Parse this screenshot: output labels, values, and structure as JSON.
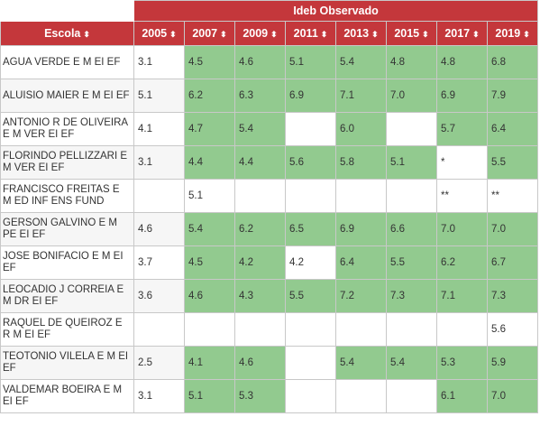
{
  "header": {
    "group_title": "Ideb Observado",
    "school_col": "Escola",
    "sort_icon": "⬍",
    "years": [
      "2005",
      "2007",
      "2009",
      "2011",
      "2013",
      "2015",
      "2017",
      "2019"
    ]
  },
  "rows": [
    {
      "school": "AGUA VERDE E M EI EF",
      "values": [
        "3.1",
        "4.5",
        "4.6",
        "5.1",
        "5.4",
        "4.8",
        "4.8",
        "6.8"
      ]
    },
    {
      "school": "ALUISIO MAIER E M EI EF",
      "values": [
        "5.1",
        "6.2",
        "6.3",
        "6.9",
        "7.1",
        "7.0",
        "6.9",
        "7.9"
      ]
    },
    {
      "school": "ANTONIO R DE OLIVEIRA E M VER EI EF",
      "values": [
        "4.1",
        "4.7",
        "5.4",
        "",
        "6.0",
        "",
        "5.7",
        "6.4"
      ]
    },
    {
      "school": "FLORINDO PELLIZZARI E M VER EI EF",
      "values": [
        "3.1",
        "4.4",
        "4.4",
        "5.6",
        "5.8",
        "5.1",
        "*",
        "5.5"
      ]
    },
    {
      "school": "FRANCISCO FREITAS E M ED INF ENS FUND",
      "values": [
        "",
        "5.1",
        "",
        "",
        "",
        "",
        "**",
        "**"
      ]
    },
    {
      "school": "GERSON GALVINO E M PE EI EF",
      "values": [
        "4.6",
        "5.4",
        "6.2",
        "6.5",
        "6.9",
        "6.6",
        "7.0",
        "7.0"
      ]
    },
    {
      "school": "JOSE BONIFACIO E M EI EF",
      "values": [
        "3.7",
        "4.5",
        "4.2",
        "4.2",
        "6.4",
        "5.5",
        "6.2",
        "6.7"
      ]
    },
    {
      "school": "LEOCADIO J CORREIA E M DR EI EF",
      "values": [
        "3.6",
        "4.6",
        "4.3",
        "5.5",
        "7.2",
        "7.3",
        "7.1",
        "7.3"
      ]
    },
    {
      "school": "RAQUEL DE QUEIROZ E R M EI EF",
      "values": [
        "",
        "",
        "",
        "",
        "",
        "",
        "",
        "5.6"
      ]
    },
    {
      "school": "TEOTONIO VILELA E M EI EF",
      "values": [
        "2.5",
        "4.1",
        "4.6",
        "",
        "5.4",
        "5.4",
        "5.3",
        "5.9"
      ]
    },
    {
      "school": "VALDEMAR BOEIRA E M EI EF",
      "values": [
        "3.1",
        "5.1",
        "5.3",
        "",
        "",
        "",
        "6.1",
        "7.0"
      ]
    }
  ],
  "cell_status": [
    [
      "w",
      "g",
      "g",
      "g",
      "g",
      "g",
      "g",
      "g"
    ],
    [
      "w",
      "g",
      "g",
      "g",
      "g",
      "g",
      "g",
      "g"
    ],
    [
      "w",
      "g",
      "g",
      "w",
      "g",
      "w",
      "g",
      "g"
    ],
    [
      "w",
      "g",
      "g",
      "g",
      "g",
      "g",
      "w",
      "g"
    ],
    [
      "w",
      "w",
      "w",
      "w",
      "w",
      "w",
      "w",
      "w"
    ],
    [
      "w",
      "g",
      "g",
      "g",
      "g",
      "g",
      "g",
      "g"
    ],
    [
      "w",
      "g",
      "g",
      "w",
      "g",
      "g",
      "g",
      "g"
    ],
    [
      "w",
      "g",
      "g",
      "g",
      "g",
      "g",
      "g",
      "g"
    ],
    [
      "w",
      "w",
      "w",
      "w",
      "w",
      "w",
      "w",
      "w"
    ],
    [
      "w",
      "g",
      "g",
      "w",
      "g",
      "g",
      "g",
      "g"
    ],
    [
      "w",
      "g",
      "g",
      "w",
      "w",
      "w",
      "g",
      "g"
    ]
  ],
  "colors": {
    "header": "#c4373b",
    "met_target": "#92ca8f",
    "border": "#c8c8c8"
  }
}
